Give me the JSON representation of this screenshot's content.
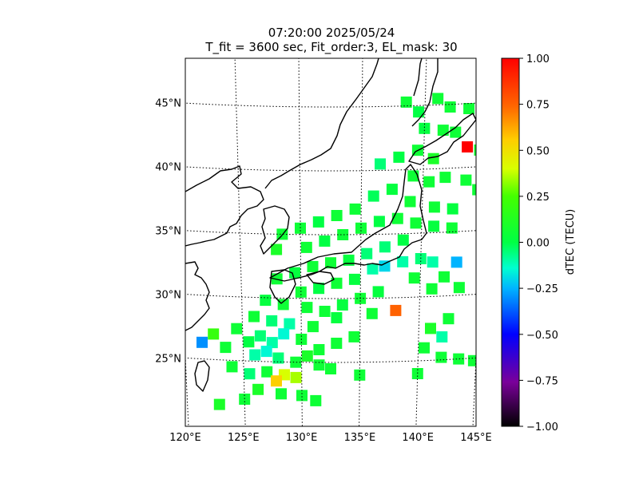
{
  "chart_data": {
    "type": "heatmap",
    "title": "07:20:00 2025/05/24",
    "subtitle": "T_fit = 3600 sec, Fit_order:3, EL_mask: 30",
    "lon_range": [
      120,
      145
    ],
    "lat_range": [
      20,
      49
    ],
    "lon_ticks": [
      120,
      125,
      130,
      135,
      140,
      145
    ],
    "lon_tick_labels": [
      "120°E",
      "125°E",
      "130°E",
      "135°E",
      "140°E",
      "145°E"
    ],
    "lat_ticks": [
      25,
      30,
      35,
      40,
      45
    ],
    "lat_tick_labels": [
      "25°N",
      "30°N",
      "35°N",
      "40°N",
      "45°N"
    ],
    "grid": true,
    "colorbar": {
      "label": "dTEC (TECU)",
      "range": [
        -1.0,
        1.0
      ],
      "ticks": [
        -1.0,
        -0.75,
        -0.5,
        -0.25,
        0.0,
        0.25,
        0.5,
        0.75,
        1.0
      ],
      "tick_labels": [
        "−1.00",
        "−0.75",
        "−0.50",
        "−0.25",
        "0.00",
        "0.25",
        "0.50",
        "0.75",
        "1.00"
      ],
      "colormap": "nipy_spectral-like",
      "stops": [
        [
          0.0,
          "#000000"
        ],
        [
          0.12,
          "#7a009a"
        ],
        [
          0.25,
          "#0000ff"
        ],
        [
          0.375,
          "#00b4ff"
        ],
        [
          0.43,
          "#00ffd0"
        ],
        [
          0.5,
          "#00ff44"
        ],
        [
          0.625,
          "#44ff00"
        ],
        [
          0.7,
          "#d8ff00"
        ],
        [
          0.78,
          "#ffcc00"
        ],
        [
          0.87,
          "#ff6600"
        ],
        [
          1.0,
          "#ff0000"
        ]
      ]
    },
    "points": [
      {
        "lon": 138.5,
        "lat": 45.3,
        "v": 0.05
      },
      {
        "lon": 139.5,
        "lat": 44.5,
        "v": 0.0
      },
      {
        "lon": 141.0,
        "lat": 45.5,
        "v": 0.05
      },
      {
        "lon": 142.0,
        "lat": 44.8,
        "v": 0.05
      },
      {
        "lon": 143.5,
        "lat": 44.6,
        "v": 0.05
      },
      {
        "lon": 140.0,
        "lat": 43.2,
        "v": 0.02
      },
      {
        "lon": 141.5,
        "lat": 43.0,
        "v": 0.05
      },
      {
        "lon": 142.5,
        "lat": 42.8,
        "v": 0.05
      },
      {
        "lon": 143.5,
        "lat": 41.6,
        "v": 1.0
      },
      {
        "lon": 144.5,
        "lat": 41.3,
        "v": 0.08
      },
      {
        "lon": 139.5,
        "lat": 41.5,
        "v": 0.05
      },
      {
        "lon": 140.8,
        "lat": 40.8,
        "v": 0.1
      },
      {
        "lon": 138.0,
        "lat": 41.0,
        "v": 0.0
      },
      {
        "lon": 136.5,
        "lat": 40.5,
        "v": -0.05
      },
      {
        "lon": 139.2,
        "lat": 39.5,
        "v": 0.05
      },
      {
        "lon": 140.5,
        "lat": 39.0,
        "v": 0.05
      },
      {
        "lon": 141.8,
        "lat": 39.3,
        "v": 0.05
      },
      {
        "lon": 143.5,
        "lat": 39.0,
        "v": 0.05
      },
      {
        "lon": 144.5,
        "lat": 38.2,
        "v": 0.05
      },
      {
        "lon": 137.5,
        "lat": 38.5,
        "v": 0.02
      },
      {
        "lon": 136.0,
        "lat": 38.0,
        "v": -0.02
      },
      {
        "lon": 139.0,
        "lat": 37.5,
        "v": 0.05
      },
      {
        "lon": 141.0,
        "lat": 37.0,
        "v": 0.05
      },
      {
        "lon": 142.5,
        "lat": 36.8,
        "v": 0.02
      },
      {
        "lon": 134.5,
        "lat": 37.0,
        "v": 0.05
      },
      {
        "lon": 133.0,
        "lat": 36.5,
        "v": 0.05
      },
      {
        "lon": 131.5,
        "lat": 36.0,
        "v": 0.0
      },
      {
        "lon": 130.0,
        "lat": 35.5,
        "v": 0.05
      },
      {
        "lon": 128.5,
        "lat": 35.0,
        "v": 0.05
      },
      {
        "lon": 128.0,
        "lat": 33.8,
        "v": 0.1
      },
      {
        "lon": 130.5,
        "lat": 34.0,
        "v": 0.05
      },
      {
        "lon": 132.0,
        "lat": 34.5,
        "v": 0.0
      },
      {
        "lon": 133.5,
        "lat": 35.0,
        "v": 0.05
      },
      {
        "lon": 135.0,
        "lat": 35.5,
        "v": 0.05
      },
      {
        "lon": 136.5,
        "lat": 36.0,
        "v": 0.0
      },
      {
        "lon": 138.0,
        "lat": 36.2,
        "v": 0.05
      },
      {
        "lon": 139.5,
        "lat": 35.8,
        "v": 0.05
      },
      {
        "lon": 141.0,
        "lat": 35.5,
        "v": 0.02
      },
      {
        "lon": 142.5,
        "lat": 35.3,
        "v": 0.05
      },
      {
        "lon": 138.5,
        "lat": 34.5,
        "v": 0.0
      },
      {
        "lon": 137.0,
        "lat": 34.0,
        "v": -0.05
      },
      {
        "lon": 135.5,
        "lat": 33.5,
        "v": -0.05
      },
      {
        "lon": 134.0,
        "lat": 33.0,
        "v": 0.02
      },
      {
        "lon": 132.5,
        "lat": 32.8,
        "v": 0.05
      },
      {
        "lon": 131.0,
        "lat": 32.5,
        "v": 0.05
      },
      {
        "lon": 129.5,
        "lat": 32.0,
        "v": 0.02
      },
      {
        "lon": 128.0,
        "lat": 31.5,
        "v": 0.05
      },
      {
        "lon": 130.0,
        "lat": 30.5,
        "v": 0.05
      },
      {
        "lon": 131.5,
        "lat": 30.8,
        "v": 0.0
      },
      {
        "lon": 133.0,
        "lat": 31.2,
        "v": 0.05
      },
      {
        "lon": 134.5,
        "lat": 31.5,
        "v": 0.02
      },
      {
        "lon": 136.0,
        "lat": 32.3,
        "v": -0.1
      },
      {
        "lon": 137.0,
        "lat": 32.5,
        "v": -0.2
      },
      {
        "lon": 138.5,
        "lat": 32.8,
        "v": -0.1
      },
      {
        "lon": 140.0,
        "lat": 33.0,
        "v": -0.05
      },
      {
        "lon": 141.0,
        "lat": 32.7,
        "v": -0.1
      },
      {
        "lon": 143.0,
        "lat": 32.6,
        "v": -0.25
      },
      {
        "lon": 142.0,
        "lat": 31.5,
        "v": 0.05
      },
      {
        "lon": 139.5,
        "lat": 31.5,
        "v": 0.05
      },
      {
        "lon": 141.0,
        "lat": 30.6,
        "v": 0.05
      },
      {
        "lon": 143.3,
        "lat": 30.6,
        "v": 0.05
      },
      {
        "lon": 135.0,
        "lat": 30.0,
        "v": 0.05
      },
      {
        "lon": 133.5,
        "lat": 29.5,
        "v": 0.02
      },
      {
        "lon": 132.0,
        "lat": 29.0,
        "v": 0.05
      },
      {
        "lon": 130.5,
        "lat": 29.3,
        "v": 0.05
      },
      {
        "lon": 128.5,
        "lat": 29.5,
        "v": 0.05
      },
      {
        "lon": 127.0,
        "lat": 29.8,
        "v": 0.02
      },
      {
        "lon": 126.0,
        "lat": 28.5,
        "v": 0.05
      },
      {
        "lon": 127.5,
        "lat": 28.2,
        "v": -0.05
      },
      {
        "lon": 129.0,
        "lat": 28.0,
        "v": -0.1
      },
      {
        "lon": 131.0,
        "lat": 27.8,
        "v": 0.05
      },
      {
        "lon": 133.0,
        "lat": 28.5,
        "v": 0.02
      },
      {
        "lon": 136.0,
        "lat": 28.8,
        "v": 0.05
      },
      {
        "lon": 138.0,
        "lat": 29.0,
        "v": 0.75
      },
      {
        "lon": 142.5,
        "lat": 28.2,
        "v": 0.05
      },
      {
        "lon": 141.0,
        "lat": 27.5,
        "v": 0.1
      },
      {
        "lon": 142.0,
        "lat": 26.8,
        "v": -0.1
      },
      {
        "lon": 122.5,
        "lat": 27.0,
        "v": 0.2
      },
      {
        "lon": 121.5,
        "lat": 26.3,
        "v": -0.3
      },
      {
        "lon": 123.5,
        "lat": 26.0,
        "v": 0.05
      },
      {
        "lon": 124.5,
        "lat": 27.5,
        "v": 0.05
      },
      {
        "lon": 125.5,
        "lat": 26.5,
        "v": 0.0
      },
      {
        "lon": 126.5,
        "lat": 27.0,
        "v": -0.05
      },
      {
        "lon": 127.5,
        "lat": 26.5,
        "v": -0.1
      },
      {
        "lon": 128.5,
        "lat": 27.2,
        "v": -0.15
      },
      {
        "lon": 130.0,
        "lat": 26.8,
        "v": 0.05
      },
      {
        "lon": 131.5,
        "lat": 26.0,
        "v": 0.05
      },
      {
        "lon": 133.0,
        "lat": 26.5,
        "v": 0.05
      },
      {
        "lon": 126.0,
        "lat": 25.5,
        "v": -0.1
      },
      {
        "lon": 127.0,
        "lat": 25.8,
        "v": -0.15
      },
      {
        "lon": 128.0,
        "lat": 25.3,
        "v": -0.05
      },
      {
        "lon": 129.5,
        "lat": 25.0,
        "v": 0.05
      },
      {
        "lon": 130.5,
        "lat": 25.5,
        "v": 0.1
      },
      {
        "lon": 131.5,
        "lat": 24.8,
        "v": 0.05
      },
      {
        "lon": 132.5,
        "lat": 24.5,
        "v": 0.05
      },
      {
        "lon": 124.0,
        "lat": 24.5,
        "v": 0.05
      },
      {
        "lon": 125.5,
        "lat": 24.0,
        "v": -0.05
      },
      {
        "lon": 127.0,
        "lat": 24.2,
        "v": 0.05
      },
      {
        "lon": 128.5,
        "lat": 24.0,
        "v": 0.4
      },
      {
        "lon": 129.5,
        "lat": 23.8,
        "v": 0.35
      },
      {
        "lon": 127.8,
        "lat": 23.5,
        "v": 0.55
      },
      {
        "lon": 126.2,
        "lat": 22.8,
        "v": 0.1
      },
      {
        "lon": 128.2,
        "lat": 22.5,
        "v": 0.05
      },
      {
        "lon": 130.0,
        "lat": 22.4,
        "v": 0.05
      },
      {
        "lon": 131.2,
        "lat": 22.0,
        "v": 0.05
      },
      {
        "lon": 125.0,
        "lat": 22.0,
        "v": 0.05
      },
      {
        "lon": 122.8,
        "lat": 21.5,
        "v": 0.1
      },
      {
        "lon": 135.0,
        "lat": 24.0,
        "v": 0.05
      },
      {
        "lon": 140.0,
        "lat": 24.0,
        "v": 0.05
      },
      {
        "lon": 140.5,
        "lat": 26.0,
        "v": 0.05
      },
      {
        "lon": 142.0,
        "lat": 25.2,
        "v": 0.05
      },
      {
        "lon": 143.5,
        "lat": 25.0,
        "v": 0.05
      },
      {
        "lon": 144.8,
        "lat": 24.8,
        "v": 0.05
      },
      {
        "lon": 134.5,
        "lat": 27.0,
        "v": 0.05
      },
      {
        "lon": 136.5,
        "lat": 30.5,
        "v": 0.02
      }
    ]
  }
}
